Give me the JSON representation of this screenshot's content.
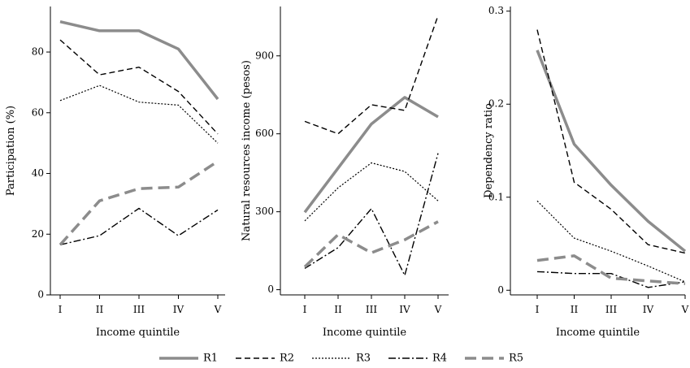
{
  "series_styles": {
    "R1": {
      "color": "#8c8c8c",
      "width": 3.5,
      "dash": ""
    },
    "R2": {
      "color": "#000000",
      "width": 1.4,
      "dash": "7,4"
    },
    "R3": {
      "color": "#000000",
      "width": 1.2,
      "dash": "2,2"
    },
    "R4": {
      "color": "#000000",
      "width": 1.4,
      "dash": "9,3,2,3"
    },
    "R5": {
      "color": "#8c8c8c",
      "width": 3.5,
      "dash": "14,7"
    }
  },
  "legend": {
    "position": "bottom",
    "labels": [
      "R1",
      "R2",
      "R3",
      "R4",
      "R5"
    ]
  },
  "chart_data": [
    {
      "type": "line",
      "xlabel": "Income quintile",
      "ylabel": "Participation (%)",
      "categories": [
        "I",
        "II",
        "III",
        "IV",
        "V"
      ],
      "ylim": [
        0,
        95
      ],
      "yticks": [
        0,
        20,
        40,
        60,
        80
      ],
      "ytick_labels": [
        "0",
        "20",
        "40",
        "60",
        "80"
      ],
      "series": [
        {
          "name": "R1",
          "values": [
            90,
            87,
            87,
            81,
            64.5
          ]
        },
        {
          "name": "R2",
          "values": [
            84,
            72.5,
            75,
            67,
            53
          ]
        },
        {
          "name": "R3",
          "values": [
            64,
            69,
            63.5,
            62.5,
            50
          ]
        },
        {
          "name": "R4",
          "values": [
            16.5,
            19.5,
            28.5,
            19.5,
            28
          ]
        },
        {
          "name": "R5",
          "values": [
            16.5,
            31,
            35,
            35.5,
            44
          ]
        }
      ]
    },
    {
      "type": "line",
      "xlabel": "Income quintile",
      "ylabel": "Natural resources income (pesos)",
      "categories": [
        "I",
        "II",
        "III",
        "IV",
        "V"
      ],
      "ylim": [
        -20,
        1090
      ],
      "yticks": [
        0,
        300,
        600,
        900
      ],
      "ytick_labels": [
        "0",
        "300",
        "600",
        "900"
      ],
      "series": [
        {
          "name": "R1",
          "values": [
            298,
            468,
            638,
            740,
            665
          ]
        },
        {
          "name": "R2",
          "values": [
            648,
            600,
            712,
            690,
            1055
          ]
        },
        {
          "name": "R3",
          "values": [
            265,
            392,
            488,
            455,
            342
          ]
        },
        {
          "name": "R4",
          "values": [
            82,
            162,
            312,
            55,
            525
          ]
        },
        {
          "name": "R5",
          "values": [
            88,
            212,
            142,
            192,
            262
          ]
        }
      ]
    },
    {
      "type": "line",
      "xlabel": "Income quintile",
      "ylabel": "Dependency ratio",
      "categories": [
        "I",
        "II",
        "III",
        "IV",
        "V"
      ],
      "ylim": [
        -0.005,
        0.305
      ],
      "yticks": [
        0,
        0.1,
        0.2,
        0.3
      ],
      "ytick_labels": [
        "0",
        "0.1",
        "0.2",
        "0.3"
      ],
      "series": [
        {
          "name": "R1",
          "values": [
            0.258,
            0.157,
            0.113,
            0.074,
            0.042
          ]
        },
        {
          "name": "R2",
          "values": [
            0.28,
            0.116,
            0.087,
            0.049,
            0.04
          ]
        },
        {
          "name": "R3",
          "values": [
            0.096,
            0.056,
            0.042,
            0.026,
            0.009
          ]
        },
        {
          "name": "R4",
          "values": [
            0.02,
            0.018,
            0.018,
            0.003,
            0.009
          ]
        },
        {
          "name": "R5",
          "values": [
            0.032,
            0.037,
            0.013,
            0.01,
            0.007
          ]
        }
      ]
    }
  ]
}
